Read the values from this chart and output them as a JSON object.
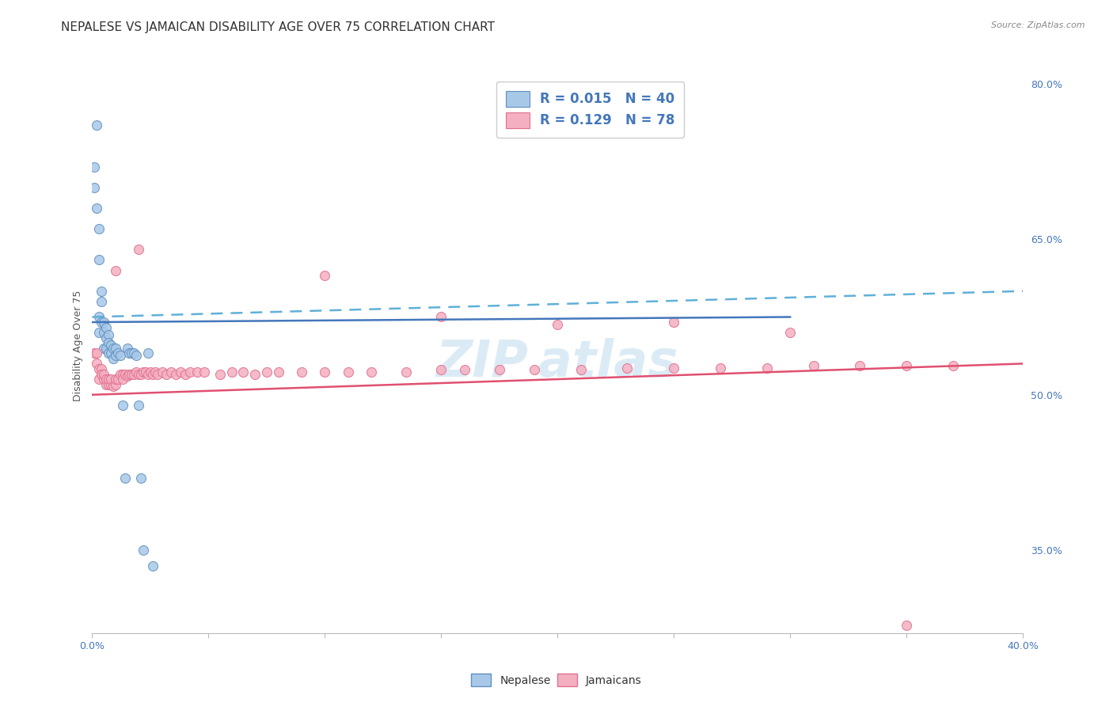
{
  "title": "NEPALESE VS JAMAICAN DISABILITY AGE OVER 75 CORRELATION CHART",
  "source": "Source: ZipAtlas.com",
  "ylabel": "Disability Age Over 75",
  "xlim": [
    0.0,
    0.4
  ],
  "ylim": [
    0.27,
    0.825
  ],
  "xticks": [
    0.0,
    0.05,
    0.1,
    0.15,
    0.2,
    0.25,
    0.3,
    0.35,
    0.4
  ],
  "xticklabels": [
    "0.0%",
    "",
    "",
    "",
    "",
    "",
    "",
    "",
    "40.0%"
  ],
  "yticks_right": [
    0.35,
    0.5,
    0.65,
    0.8
  ],
  "ytick_right_labels": [
    "35.0%",
    "50.0%",
    "65.0%",
    "80.0%"
  ],
  "nepalese_color": "#a8c8e8",
  "jamaican_color": "#f4b0c0",
  "nepalese_edge": "#6090c0",
  "jamaican_edge": "#e07090",
  "blue_line_color": "#4477bb",
  "pink_line_color": "#e05070",
  "dashed_line_color": "#60b0d8",
  "grid_color": "#d0d0d0",
  "background_color": "#ffffff",
  "title_fontsize": 11,
  "axis_label_fontsize": 9,
  "tick_fontsize": 9,
  "legend_nepalese": "R = 0.015   N = 40",
  "legend_jamaican": "R = 0.129   N = 78",
  "nepalese_x": [
    0.001,
    0.001,
    0.002,
    0.002,
    0.003,
    0.003,
    0.003,
    0.003,
    0.004,
    0.004,
    0.004,
    0.005,
    0.005,
    0.005,
    0.006,
    0.006,
    0.006,
    0.007,
    0.007,
    0.007,
    0.008,
    0.008,
    0.009,
    0.009,
    0.01,
    0.01,
    0.011,
    0.012,
    0.013,
    0.014,
    0.015,
    0.016,
    0.017,
    0.018,
    0.019,
    0.02,
    0.021,
    0.022,
    0.024,
    0.026
  ],
  "nepalese_y": [
    0.72,
    0.7,
    0.76,
    0.68,
    0.66,
    0.63,
    0.575,
    0.56,
    0.6,
    0.59,
    0.57,
    0.57,
    0.56,
    0.545,
    0.565,
    0.555,
    0.545,
    0.558,
    0.55,
    0.54,
    0.548,
    0.54,
    0.545,
    0.535,
    0.545,
    0.538,
    0.54,
    0.538,
    0.49,
    0.42,
    0.545,
    0.54,
    0.54,
    0.54,
    0.538,
    0.49,
    0.42,
    0.35,
    0.54,
    0.335
  ],
  "jamaican_x": [
    0.001,
    0.002,
    0.002,
    0.003,
    0.003,
    0.004,
    0.004,
    0.005,
    0.005,
    0.006,
    0.006,
    0.007,
    0.007,
    0.008,
    0.008,
    0.009,
    0.01,
    0.01,
    0.011,
    0.012,
    0.013,
    0.013,
    0.014,
    0.015,
    0.016,
    0.017,
    0.018,
    0.019,
    0.02,
    0.021,
    0.022,
    0.023,
    0.024,
    0.025,
    0.026,
    0.027,
    0.028,
    0.03,
    0.032,
    0.034,
    0.036,
    0.038,
    0.04,
    0.042,
    0.045,
    0.048,
    0.055,
    0.06,
    0.065,
    0.07,
    0.075,
    0.08,
    0.09,
    0.1,
    0.11,
    0.12,
    0.135,
    0.15,
    0.16,
    0.175,
    0.19,
    0.21,
    0.23,
    0.25,
    0.27,
    0.29,
    0.31,
    0.33,
    0.35,
    0.37,
    0.01,
    0.02,
    0.1,
    0.15,
    0.2,
    0.25,
    0.3,
    0.35
  ],
  "jamaican_y": [
    0.54,
    0.53,
    0.54,
    0.525,
    0.515,
    0.525,
    0.52,
    0.515,
    0.52,
    0.51,
    0.515,
    0.51,
    0.515,
    0.51,
    0.515,
    0.508,
    0.51,
    0.515,
    0.515,
    0.52,
    0.52,
    0.515,
    0.52,
    0.518,
    0.52,
    0.52,
    0.52,
    0.522,
    0.52,
    0.52,
    0.522,
    0.522,
    0.52,
    0.522,
    0.52,
    0.522,
    0.52,
    0.522,
    0.52,
    0.522,
    0.52,
    0.522,
    0.52,
    0.522,
    0.522,
    0.522,
    0.52,
    0.522,
    0.522,
    0.52,
    0.522,
    0.522,
    0.522,
    0.522,
    0.522,
    0.522,
    0.522,
    0.524,
    0.524,
    0.524,
    0.524,
    0.524,
    0.526,
    0.526,
    0.526,
    0.526,
    0.528,
    0.528,
    0.528,
    0.528,
    0.62,
    0.64,
    0.615,
    0.575,
    0.568,
    0.57,
    0.56,
    0.278
  ],
  "blue_line_x0": 0.0,
  "blue_line_y0": 0.57,
  "blue_line_x1": 0.3,
  "blue_line_y1": 0.575,
  "dashed_line_x0": 0.0,
  "dashed_line_y0": 0.575,
  "dashed_line_x1": 0.4,
  "dashed_line_y1": 0.6,
  "pink_line_x0": 0.0,
  "pink_line_y0": 0.5,
  "pink_line_x1": 0.4,
  "pink_line_y1": 0.53
}
